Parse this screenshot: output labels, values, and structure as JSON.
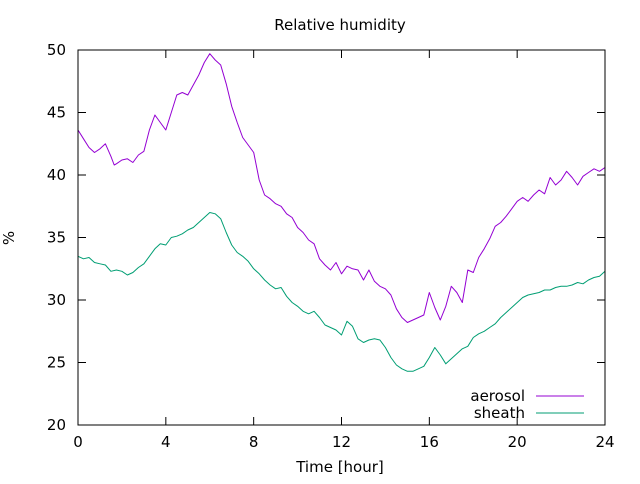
{
  "chart_data": {
    "type": "line",
    "title": "Relative humidity",
    "xlabel": "Time [hour]",
    "ylabel": "%",
    "xlim": [
      0,
      24
    ],
    "ylim": [
      20,
      50
    ],
    "xticks": [
      0,
      4,
      8,
      12,
      16,
      20,
      24
    ],
    "yticks": [
      20,
      25,
      30,
      35,
      40,
      45,
      50
    ],
    "grid": false,
    "legend_position": "bottom-right",
    "series": [
      {
        "name": "aerosol",
        "color": "#9400d3",
        "x": [
          0,
          0.25,
          0.5,
          0.75,
          1.0,
          1.25,
          1.5,
          1.65,
          1.75,
          2.0,
          2.25,
          2.5,
          2.75,
          3.0,
          3.25,
          3.5,
          3.75,
          4.0,
          4.25,
          4.5,
          4.75,
          5.0,
          5.25,
          5.5,
          5.75,
          6.0,
          6.25,
          6.5,
          6.75,
          7.0,
          7.25,
          7.5,
          7.75,
          8.0,
          8.25,
          8.5,
          8.75,
          9.0,
          9.25,
          9.5,
          9.75,
          10.0,
          10.25,
          10.5,
          10.75,
          11.0,
          11.25,
          11.5,
          11.75,
          12.0,
          12.25,
          12.5,
          12.75,
          13.0,
          13.25,
          13.5,
          13.75,
          14.0,
          14.25,
          14.5,
          14.75,
          15.0,
          15.25,
          15.5,
          15.75,
          16.0,
          16.25,
          16.5,
          16.75,
          17.0,
          17.25,
          17.5,
          17.75,
          18.0,
          18.25,
          18.5,
          18.75,
          19.0,
          19.25,
          19.5,
          19.75,
          20.0,
          20.25,
          20.5,
          20.75,
          21.0,
          21.25,
          21.5,
          21.75,
          22.0,
          22.25,
          22.5,
          22.75,
          23.0,
          23.25,
          23.5,
          23.75,
          24.0
        ],
        "y": [
          43.6,
          42.9,
          42.2,
          41.8,
          42.1,
          42.5,
          41.5,
          40.8,
          40.9,
          41.2,
          41.3,
          41.0,
          41.6,
          41.9,
          43.6,
          44.8,
          44.2,
          43.6,
          45.0,
          46.4,
          46.6,
          46.4,
          47.2,
          48.0,
          49.0,
          49.7,
          49.2,
          48.8,
          47.3,
          45.5,
          44.2,
          43.0,
          42.4,
          41.8,
          39.6,
          38.4,
          38.1,
          37.7,
          37.5,
          36.9,
          36.6,
          35.8,
          35.4,
          34.8,
          34.5,
          33.3,
          32.8,
          32.4,
          33.0,
          32.1,
          32.7,
          32.5,
          32.4,
          31.6,
          32.4,
          31.5,
          31.1,
          30.9,
          30.4,
          29.3,
          28.6,
          28.2,
          28.4,
          28.6,
          28.8,
          30.6,
          29.4,
          28.4,
          29.5,
          31.1,
          30.6,
          29.8,
          32.4,
          32.2,
          33.4,
          34.1,
          34.9,
          35.9,
          36.2,
          36.7,
          37.3,
          37.9,
          38.2,
          37.9,
          38.4,
          38.8,
          38.5,
          39.8,
          39.2,
          39.6,
          40.3,
          39.8,
          39.2,
          39.9,
          40.2,
          40.5,
          40.3,
          40.6
        ]
      },
      {
        "name": "sheath",
        "color": "#009e73",
        "x": [
          0,
          0.25,
          0.5,
          0.75,
          1.0,
          1.25,
          1.5,
          1.75,
          2.0,
          2.25,
          2.5,
          2.75,
          3.0,
          3.25,
          3.5,
          3.75,
          4.0,
          4.25,
          4.5,
          4.75,
          5.0,
          5.25,
          5.5,
          5.75,
          6.0,
          6.25,
          6.5,
          6.75,
          7.0,
          7.25,
          7.5,
          7.75,
          8.0,
          8.25,
          8.5,
          8.75,
          9.0,
          9.25,
          9.5,
          9.75,
          10.0,
          10.25,
          10.5,
          10.75,
          11.0,
          11.25,
          11.5,
          11.75,
          12.0,
          12.25,
          12.5,
          12.75,
          13.0,
          13.25,
          13.5,
          13.75,
          14.0,
          14.25,
          14.5,
          14.75,
          15.0,
          15.25,
          15.5,
          15.75,
          16.0,
          16.25,
          16.5,
          16.75,
          17.0,
          17.25,
          17.5,
          17.75,
          18.0,
          18.25,
          18.5,
          18.75,
          19.0,
          19.25,
          19.5,
          19.75,
          20.0,
          20.25,
          20.5,
          20.75,
          21.0,
          21.25,
          21.5,
          21.75,
          22.0,
          22.25,
          22.5,
          22.75,
          23.0,
          23.25,
          23.5,
          23.75,
          24.0
        ],
        "y": [
          33.5,
          33.3,
          33.4,
          33.0,
          32.9,
          32.8,
          32.3,
          32.4,
          32.3,
          32.0,
          32.2,
          32.6,
          32.9,
          33.5,
          34.1,
          34.5,
          34.4,
          35.0,
          35.1,
          35.3,
          35.6,
          35.8,
          36.2,
          36.6,
          37.0,
          36.9,
          36.5,
          35.4,
          34.4,
          33.8,
          33.5,
          33.1,
          32.5,
          32.1,
          31.6,
          31.2,
          30.9,
          31.0,
          30.3,
          29.8,
          29.5,
          29.1,
          28.9,
          29.1,
          28.6,
          28.0,
          27.8,
          27.6,
          27.2,
          28.3,
          27.9,
          26.9,
          26.6,
          26.8,
          26.9,
          26.8,
          26.2,
          25.4,
          24.8,
          24.5,
          24.3,
          24.3,
          24.5,
          24.7,
          25.4,
          26.2,
          25.6,
          24.9,
          25.3,
          25.7,
          26.1,
          26.3,
          27.0,
          27.3,
          27.5,
          27.8,
          28.1,
          28.6,
          29.0,
          29.4,
          29.8,
          30.2,
          30.4,
          30.5,
          30.6,
          30.8,
          30.8,
          31.0,
          31.1,
          31.1,
          31.2,
          31.4,
          31.3,
          31.6,
          31.8,
          31.9,
          32.3
        ]
      }
    ]
  }
}
